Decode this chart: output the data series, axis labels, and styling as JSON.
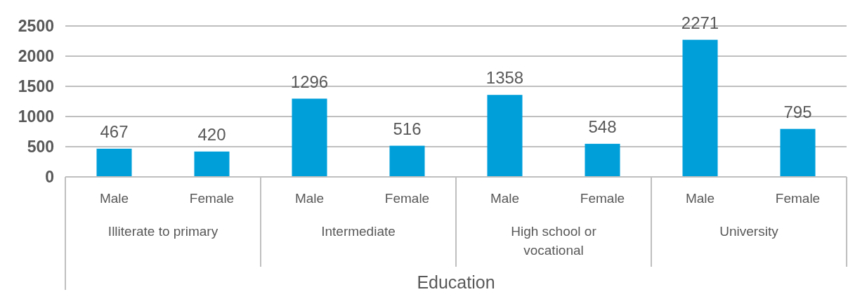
{
  "chart_data": {
    "type": "bar",
    "xlabel": "Education",
    "categories": [
      "Male",
      "Female",
      "Male",
      "Female",
      "Male",
      "Female",
      "Male",
      "Female"
    ],
    "values": [
      467,
      420,
      1296,
      516,
      1358,
      548,
      2271,
      795
    ],
    "color": "#009fda",
    "ylim": [
      0,
      2500
    ],
    "yticks": [
      0,
      500,
      1000,
      1500,
      2000,
      2500
    ],
    "grid": "y",
    "data_labels": true,
    "annotations": [
      "Illiterate to primary",
      "Intermediate",
      "High school or vocational",
      "University"
    ]
  }
}
